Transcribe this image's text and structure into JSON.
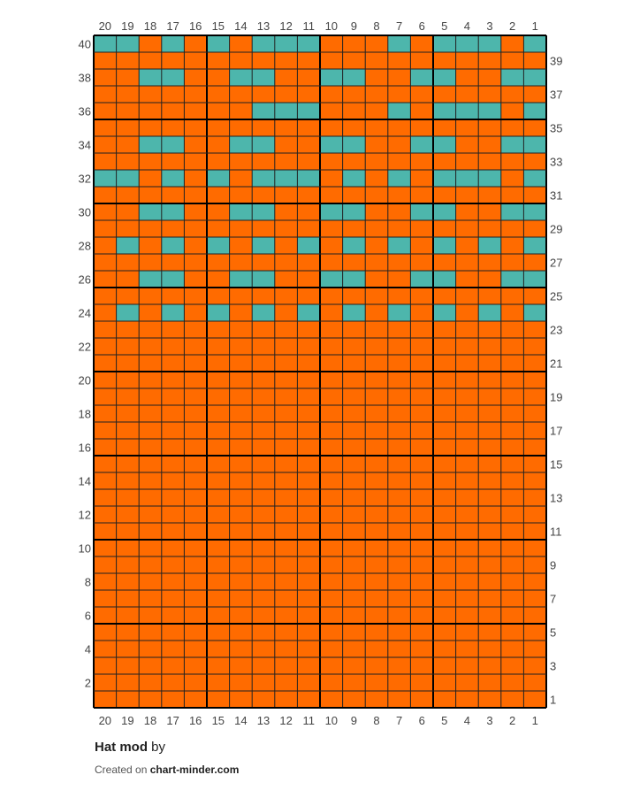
{
  "pattern": {
    "title": "Hat mod",
    "by_label": "by",
    "created_label": "Created on",
    "site": "chart-minder.com"
  },
  "chart_data": {
    "type": "table",
    "columns": 20,
    "rows": 40,
    "column_numbers": [
      20,
      19,
      18,
      17,
      16,
      15,
      14,
      13,
      12,
      11,
      10,
      9,
      8,
      7,
      6,
      5,
      4,
      3,
      2,
      1
    ],
    "colors": {
      "main": "#ff6b00",
      "contrast": "#4db6ac",
      "grid": "#222222",
      "bold_grid": "#000000"
    },
    "legend": {
      "O": "main color",
      "T": "contrast color"
    },
    "rows_top_to_bottom": [
      {
        "row": 40,
        "cells": "TTOTOTOTTTOOOTOTTTOT"
      },
      {
        "row": 39,
        "cells": "OOOOOOOOOOOOOOOOOOOO"
      },
      {
        "row": 38,
        "cells": "OOTTOOTTOOTTOOTTOOTT"
      },
      {
        "row": 37,
        "cells": "OOOOOOOOOOOOOOOOOOOO"
      },
      {
        "row": 36,
        "cells": "OOOOOOOTTTOOOTOTTTOT"
      },
      {
        "row": 35,
        "cells": "OOOOOOOOOOOOOOOOOOOO"
      },
      {
        "row": 34,
        "cells": "OOTTOOTTOOTTOOTTOOTT"
      },
      {
        "row": 33,
        "cells": "OOOOOOOOOOOOOOOOOOOO"
      },
      {
        "row": 32,
        "cells": "TTOTOTOTTTOTOTOTTTOT"
      },
      {
        "row": 31,
        "cells": "OOOOOOOOOOOOOOOOOOOO"
      },
      {
        "row": 30,
        "cells": "OOTTOOTTOOTTOOTTOOTT"
      },
      {
        "row": 29,
        "cells": "OOOOOOOOOOOOOOOOOOOO"
      },
      {
        "row": 28,
        "cells": "OTOTOTOTOTOTOTOTOTOT"
      },
      {
        "row": 27,
        "cells": "OOOOOOOOOOOOOOOOOOOO"
      },
      {
        "row": 26,
        "cells": "OOTTOOTTOOTTOOTTOOTT"
      },
      {
        "row": 25,
        "cells": "OOOOOOOOOOOOOOOOOOOO"
      },
      {
        "row": 24,
        "cells": "OTOTOTOTOTOTOTOTOTOT"
      },
      {
        "row": 23,
        "cells": "OOOOOOOOOOOOOOOOOOOO"
      },
      {
        "row": 22,
        "cells": "OOOOOOOOOOOOOOOOOOOO"
      },
      {
        "row": 21,
        "cells": "OOOOOOOOOOOOOOOOOOOO"
      },
      {
        "row": 20,
        "cells": "OOOOOOOOOOOOOOOOOOOO"
      },
      {
        "row": 19,
        "cells": "OOOOOOOOOOOOOOOOOOOO"
      },
      {
        "row": 18,
        "cells": "OOOOOOOOOOOOOOOOOOOO"
      },
      {
        "row": 17,
        "cells": "OOOOOOOOOOOOOOOOOOOO"
      },
      {
        "row": 16,
        "cells": "OOOOOOOOOOOOOOOOOOOO"
      },
      {
        "row": 15,
        "cells": "OOOOOOOOOOOOOOOOOOOO"
      },
      {
        "row": 14,
        "cells": "OOOOOOOOOOOOOOOOOOOO"
      },
      {
        "row": 13,
        "cells": "OOOOOOOOOOOOOOOOOOOO"
      },
      {
        "row": 12,
        "cells": "OOOOOOOOOOOOOOOOOOOO"
      },
      {
        "row": 11,
        "cells": "OOOOOOOOOOOOOOOOOOOO"
      },
      {
        "row": 10,
        "cells": "OOOOOOOOOOOOOOOOOOOO"
      },
      {
        "row": 9,
        "cells": "OOOOOOOOOOOOOOOOOOOO"
      },
      {
        "row": 8,
        "cells": "OOOOOOOOOOOOOOOOOOOO"
      },
      {
        "row": 7,
        "cells": "OOOOOOOOOOOOOOOOOOOO"
      },
      {
        "row": 6,
        "cells": "OOOOOOOOOOOOOOOOOOOO"
      },
      {
        "row": 5,
        "cells": "OOOOOOOOOOOOOOOOOOOO"
      },
      {
        "row": 4,
        "cells": "OOOOOOOOOOOOOOOOOOOO"
      },
      {
        "row": 3,
        "cells": "OOOOOOOOOOOOOOOOOOOO"
      },
      {
        "row": 2,
        "cells": "OOOOOOOOOOOOOOOOOOOO"
      },
      {
        "row": 1,
        "cells": "OOOOOOOOOOOOOOOOOOOO"
      }
    ]
  }
}
